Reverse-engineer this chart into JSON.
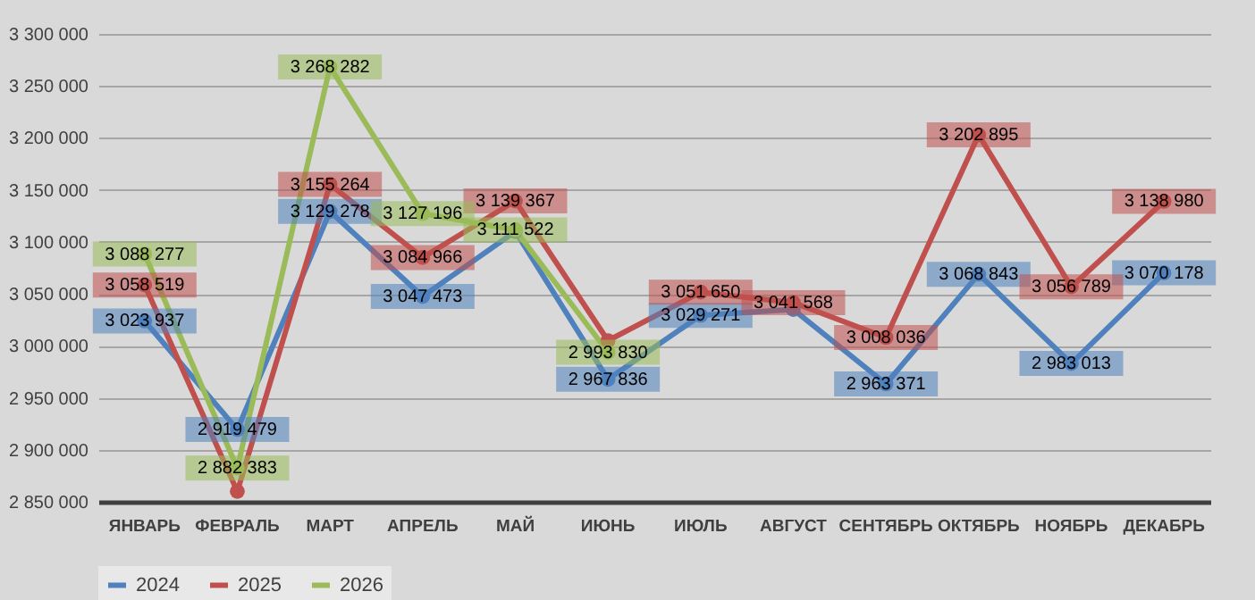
{
  "chart_data": {
    "type": "line",
    "categories": [
      "ЯНВАРЬ",
      "ФЕВРАЛЬ",
      "МАРТ",
      "АПРЕЛЬ",
      "МАЙ",
      "ИЮНЬ",
      "ИЮЛЬ",
      "АВГУСТ",
      "СЕНТЯБРЬ",
      "ОКТЯБРЬ",
      "НОЯБРЬ",
      "ДЕКАБРЬ"
    ],
    "series": [
      {
        "name": "2024",
        "color": "#4f81bd",
        "values": [
          3023937,
          2919479,
          3129278,
          3047473,
          3110000,
          2967836,
          3029271,
          3035000,
          2963371,
          3068843,
          2983013,
          3070178
        ],
        "value_labels": [
          "3 023 937",
          "2 919 479",
          "3 129 278",
          "3 047 473",
          null,
          "2 967 836",
          "3 029 271",
          null,
          "2 963 371",
          "3 068 843",
          "2 983 013",
          "3 070 178"
        ]
      },
      {
        "name": "2025",
        "color": "#c0504d",
        "values": [
          3058519,
          2860000,
          3155264,
          3084966,
          3139367,
          3005000,
          3051650,
          3041568,
          3008036,
          3202895,
          3056789,
          3138980
        ],
        "value_labels": [
          "3 058 519",
          null,
          "3 155 264",
          "3 084 966",
          "3 139 367",
          null,
          "3 051 650",
          "3 041 568",
          "3 008 036",
          "3 202 895",
          "3 056 789",
          "3 138 980"
        ]
      },
      {
        "name": "2026",
        "color": "#9bbb59",
        "values": [
          3088277,
          2882383,
          3268282,
          3127196,
          3111522,
          2993830,
          null,
          null,
          null,
          null,
          null,
          null
        ],
        "value_labels": [
          "3 088 277",
          "2 882 383",
          "3 268 282",
          "3 127 196",
          "3 111 522",
          "2 993 830",
          null,
          null,
          null,
          null,
          null,
          null
        ]
      }
    ],
    "ylim": [
      2850000,
      3300000
    ],
    "yticks": [
      {
        "value": 2850000,
        "label": "2 850 000"
      },
      {
        "value": 2900000,
        "label": "2 900 000"
      },
      {
        "value": 2950000,
        "label": "2 950 000"
      },
      {
        "value": 3000000,
        "label": "3 000 000"
      },
      {
        "value": 3050000,
        "label": "3 050 000"
      },
      {
        "value": 3100000,
        "label": "3 100 000"
      },
      {
        "value": 3150000,
        "label": "3 150 000"
      },
      {
        "value": 3200000,
        "label": "3 200 000"
      },
      {
        "value": 3250000,
        "label": "3 250 000"
      },
      {
        "value": 3300000,
        "label": "3 300 000"
      }
    ],
    "grid": "y",
    "legend": "bottom",
    "marker": "circle",
    "line_style": "solid"
  }
}
